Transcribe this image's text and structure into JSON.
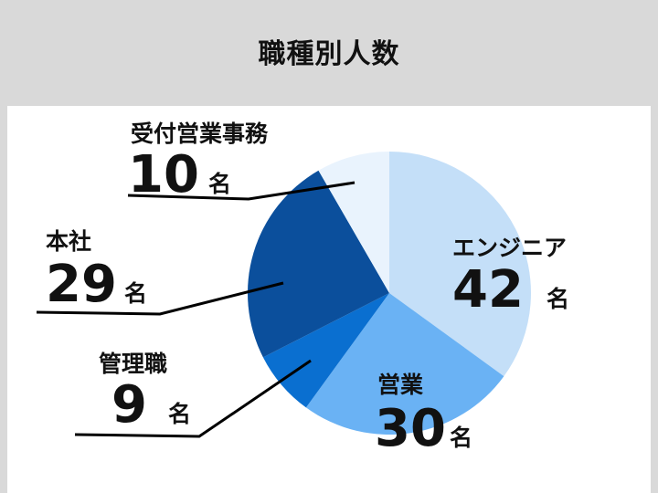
{
  "title": "職種別人数",
  "chart_data": {
    "type": "pie",
    "title": "職種別人数",
    "unit": "名",
    "start_angle_deg": 0,
    "direction": "clockwise",
    "slices": [
      {
        "label": "エンジニア",
        "value": 42,
        "color": "#c4dff8"
      },
      {
        "label": "営業",
        "value": 30,
        "color": "#6ab2f4"
      },
      {
        "label": "管理職",
        "value": 9,
        "color": "#0a6fd0"
      },
      {
        "label": "本社",
        "value": 29,
        "color": "#0b4f9c"
      },
      {
        "label": "受付営業事務",
        "value": 10,
        "color": "#e9f3fd"
      }
    ]
  }
}
